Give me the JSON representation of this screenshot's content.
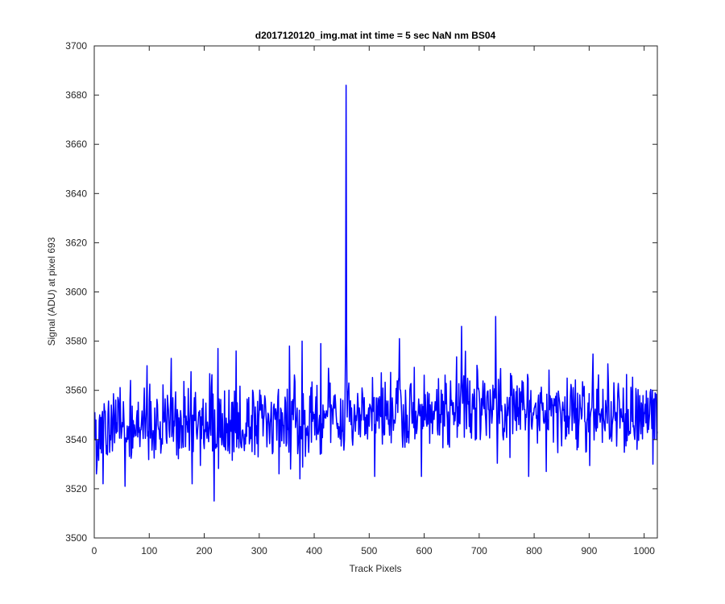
{
  "chart_data": {
    "type": "line",
    "title": "d2017120120_img.mat int time = 5 sec  NaN nm BS04",
    "xlabel": "Track Pixels",
    "ylabel": "Signal (ADU) at pixel 693",
    "xlim": [
      0,
      1024
    ],
    "ylim": [
      3500,
      3700
    ],
    "xticks": [
      0,
      100,
      200,
      300,
      400,
      500,
      600,
      700,
      800,
      900,
      1000
    ],
    "yticks": [
      3500,
      3520,
      3540,
      3560,
      3580,
      3600,
      3620,
      3640,
      3660,
      3680,
      3700
    ],
    "grid": false,
    "line_color": "#0000ff",
    "series": [
      {
        "x_start": 1,
        "x_step": 1,
        "count": 1024,
        "baseline_points": [
          [
            1,
            3545
          ],
          [
            350,
            3547
          ],
          [
            700,
            3554
          ],
          [
            1024,
            3550
          ]
        ],
        "noise_std": 8,
        "seed": 693,
        "features": [
          {
            "x": 16,
            "y": 3522
          },
          {
            "x": 56,
            "y": 3521
          },
          {
            "x": 96,
            "y": 3570
          },
          {
            "x": 140,
            "y": 3573
          },
          {
            "x": 178,
            "y": 3522
          },
          {
            "x": 218,
            "y": 3515
          },
          {
            "x": 225,
            "y": 3577
          },
          {
            "x": 258,
            "y": 3576
          },
          {
            "x": 355,
            "y": 3578
          },
          {
            "x": 378,
            "y": 3580
          },
          {
            "x": 412,
            "y": 3579
          },
          {
            "x": 457,
            "y": 3579
          },
          {
            "x": 458,
            "y": 3684
          },
          {
            "x": 459,
            "y": 3579
          },
          {
            "x": 510,
            "y": 3525
          },
          {
            "x": 555,
            "y": 3581
          },
          {
            "x": 595,
            "y": 3525
          },
          {
            "x": 668,
            "y": 3586
          },
          {
            "x": 730,
            "y": 3590
          },
          {
            "x": 790,
            "y": 3525
          },
          {
            "x": 822,
            "y": 3527
          },
          {
            "x": 1016,
            "y": 3530
          }
        ]
      }
    ]
  }
}
